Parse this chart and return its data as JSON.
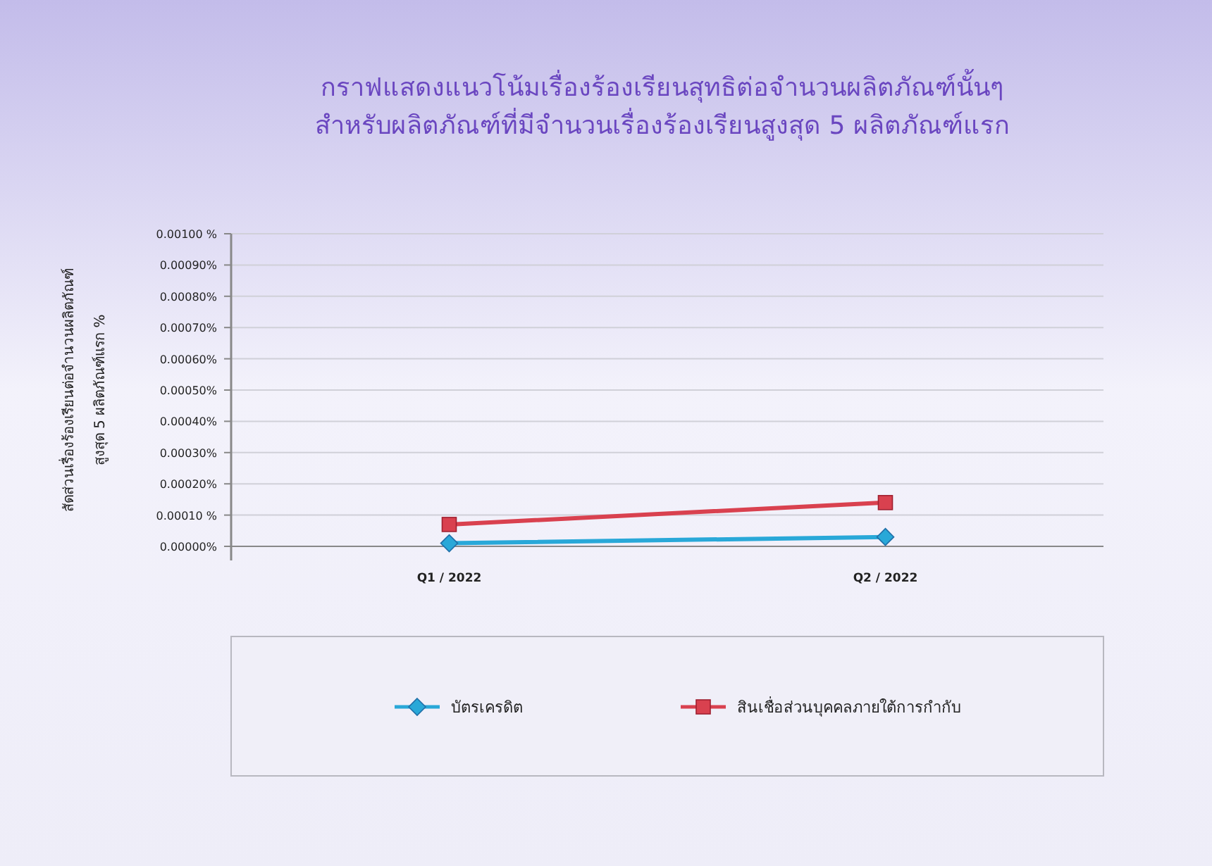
{
  "chart_data": {
    "type": "line",
    "title": "กราฟแสดงแนวโน้มเรื่องร้องเรียนสุทธิต่อจำนวนผลิตภัณฑ์นั้นๆ\nสำหรับผลิตภัณฑ์ที่มีจำนวนเรื่องร้องเรียนสูงสุด 5 ผลิตภัณฑ์แรก",
    "ylabel": "สัดส่วนเรื่องร้องเรียนต่อจำนวนผลิตภัณฑ์\nสูงสุด 5 ผลิตภัณฑ์แรก    %",
    "categories": [
      "Q1 / 2022",
      "Q2 / 2022"
    ],
    "series": [
      {
        "name": "บัตรเครดิต",
        "color": "#29a8d8",
        "values": [
          1e-05,
          3e-05
        ],
        "marker": "diamond"
      },
      {
        "name": "สินเชื่อส่วนบุคคลภายใต้การกำกับ",
        "color": "#d9414f",
        "values": [
          7e-05,
          0.00014
        ],
        "marker": "square"
      }
    ],
    "ylim": [
      0,
      0.001
    ],
    "yticks": [
      {
        "value": 0,
        "label": "0.00000%"
      },
      {
        "value": 0.0001,
        "label": "0.00010 %"
      },
      {
        "value": 0.0002,
        "label": "0.00020%"
      },
      {
        "value": 0.0003,
        "label": "0.00030%"
      },
      {
        "value": 0.0004,
        "label": "0.00040%"
      },
      {
        "value": 0.0005,
        "label": "0.00050%"
      },
      {
        "value": 0.0006,
        "label": "0.00060%"
      },
      {
        "value": 0.0007,
        "label": "0.00070%"
      },
      {
        "value": 0.0008,
        "label": "0.00080%"
      },
      {
        "value": 0.0009,
        "label": "0.00090%"
      },
      {
        "value": 0.001,
        "label": "0.00100 %"
      }
    ],
    "grid": "y",
    "legend": "bottom"
  }
}
